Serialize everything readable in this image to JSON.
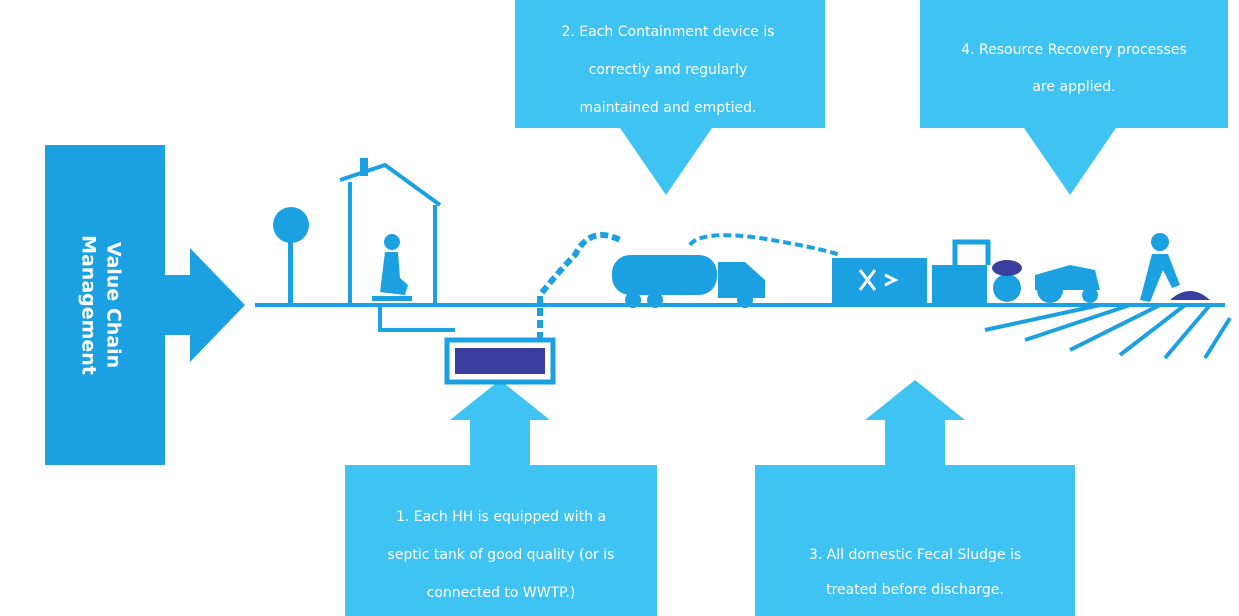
{
  "side_label": {
    "lines": [
      "Value Chain",
      "Management"
    ]
  },
  "callouts": [
    {
      "lines": [
        "1. Each HH is equipped with a",
        "septic tank of good quality (or is",
        "connected to WWTP.)"
      ]
    },
    {
      "lines": [
        "2. Each Containment device is",
        "correctly and regularly",
        "maintained and emptied."
      ]
    },
    {
      "lines": [
        "3. All domestic Fecal Sludge is",
        "treated before discharge."
      ]
    },
    {
      "lines": [
        "4. Resource Recovery processes",
        "are applied."
      ]
    }
  ]
}
